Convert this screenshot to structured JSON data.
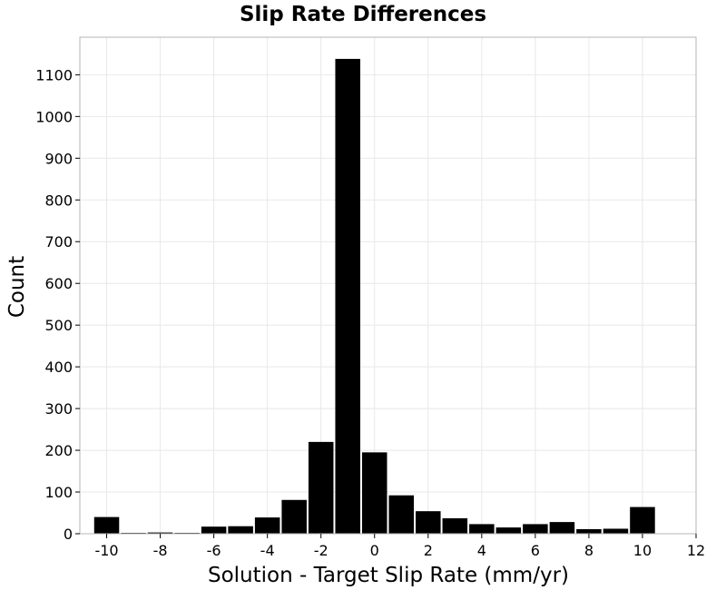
{
  "chart_data": {
    "type": "bar",
    "title": "Slip Rate Differences",
    "xlabel": "Solution - Target Slip Rate (mm/yr)",
    "ylabel": "Count",
    "bin_width": 1,
    "bins": [
      {
        "center": -10,
        "value": 40
      },
      {
        "center": -9,
        "value": 2
      },
      {
        "center": -8,
        "value": 3
      },
      {
        "center": -7,
        "value": 2
      },
      {
        "center": -6,
        "value": 17
      },
      {
        "center": -5,
        "value": 18
      },
      {
        "center": -4,
        "value": 39
      },
      {
        "center": -3,
        "value": 81
      },
      {
        "center": -2,
        "value": 220
      },
      {
        "center": -1,
        "value": 1138
      },
      {
        "center": 0,
        "value": 195
      },
      {
        "center": 1,
        "value": 92
      },
      {
        "center": 2,
        "value": 54
      },
      {
        "center": 3,
        "value": 37
      },
      {
        "center": 4,
        "value": 23
      },
      {
        "center": 5,
        "value": 15
      },
      {
        "center": 6,
        "value": 23
      },
      {
        "center": 7,
        "value": 28
      },
      {
        "center": 8,
        "value": 11
      },
      {
        "center": 9,
        "value": 12
      },
      {
        "center": 10,
        "value": 64
      }
    ],
    "xlim": [
      -11,
      12
    ],
    "ylim": [
      0,
      1190
    ],
    "xticks": [
      -10,
      -8,
      -6,
      -4,
      -2,
      0,
      2,
      4,
      6,
      8,
      10,
      12
    ],
    "yticks": [
      0,
      100,
      200,
      300,
      400,
      500,
      600,
      700,
      800,
      900,
      1000,
      1100
    ],
    "grid": true,
    "bar_color": "#000000",
    "grid_color": "#e8e8e8"
  }
}
